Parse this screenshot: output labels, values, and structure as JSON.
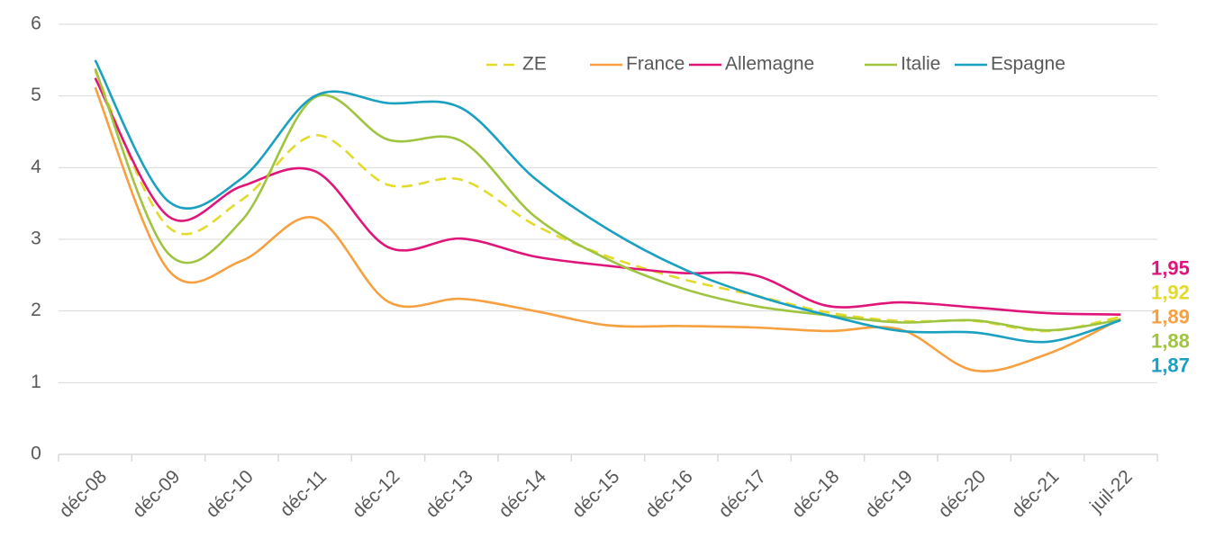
{
  "chart_data": {
    "type": "line",
    "categories": [
      "déc-08",
      "déc-09",
      "déc-10",
      "déc-11",
      "déc-12",
      "déc-13",
      "déc-14",
      "déc-15",
      "déc-16",
      "déc-17",
      "déc-18",
      "déc-19",
      "déc-20",
      "déc-21",
      "juil-22"
    ],
    "ylim": [
      0,
      6
    ],
    "yticks": [
      0,
      1,
      2,
      3,
      4,
      5,
      6
    ],
    "grid": true,
    "legend": "top-right",
    "series": [
      {
        "name": "ZE",
        "color": "#e3db2c",
        "dashed": true,
        "values": [
          5.35,
          3.17,
          3.55,
          4.45,
          3.76,
          3.83,
          3.2,
          2.76,
          2.45,
          2.22,
          1.98,
          1.86,
          1.86,
          1.72,
          1.92
        ],
        "value_labels": [
          null,
          null,
          null,
          null,
          null,
          null,
          null,
          null,
          null,
          null,
          null,
          null,
          null,
          null,
          "1,92"
        ]
      },
      {
        "name": "France",
        "color": "#f7a040",
        "values": [
          5.12,
          2.57,
          2.7,
          3.3,
          2.13,
          2.17,
          2.0,
          1.8,
          1.79,
          1.77,
          1.72,
          1.74,
          1.17,
          1.4,
          1.89
        ],
        "value_labels": [
          null,
          null,
          null,
          null,
          null,
          null,
          null,
          null,
          null,
          null,
          null,
          null,
          null,
          null,
          "1,89"
        ]
      },
      {
        "name": "Allemagne",
        "color": "#e0157a",
        "values": [
          5.25,
          3.32,
          3.74,
          3.95,
          2.89,
          3.01,
          2.76,
          2.63,
          2.53,
          2.5,
          2.07,
          2.12,
          2.05,
          1.97,
          1.95
        ],
        "value_labels": [
          null,
          null,
          null,
          null,
          null,
          null,
          null,
          null,
          null,
          null,
          null,
          null,
          null,
          null,
          "1,95"
        ]
      },
      {
        "name": "Italie",
        "color": "#9fc440",
        "values": [
          5.38,
          2.8,
          3.26,
          4.98,
          4.39,
          4.37,
          3.32,
          2.72,
          2.32,
          2.07,
          1.94,
          1.84,
          1.87,
          1.73,
          1.88
        ],
        "value_labels": [
          null,
          null,
          null,
          null,
          null,
          null,
          null,
          null,
          null,
          null,
          null,
          null,
          null,
          null,
          "1,88"
        ]
      },
      {
        "name": "Espagne",
        "color": "#1aa0c0",
        "values": [
          5.5,
          3.53,
          3.85,
          5.0,
          4.9,
          4.83,
          3.85,
          3.14,
          2.6,
          2.22,
          1.94,
          1.72,
          1.7,
          1.57,
          1.87
        ],
        "value_labels": [
          null,
          null,
          null,
          null,
          null,
          null,
          null,
          null,
          null,
          null,
          null,
          null,
          null,
          null,
          "1,87"
        ]
      }
    ]
  }
}
